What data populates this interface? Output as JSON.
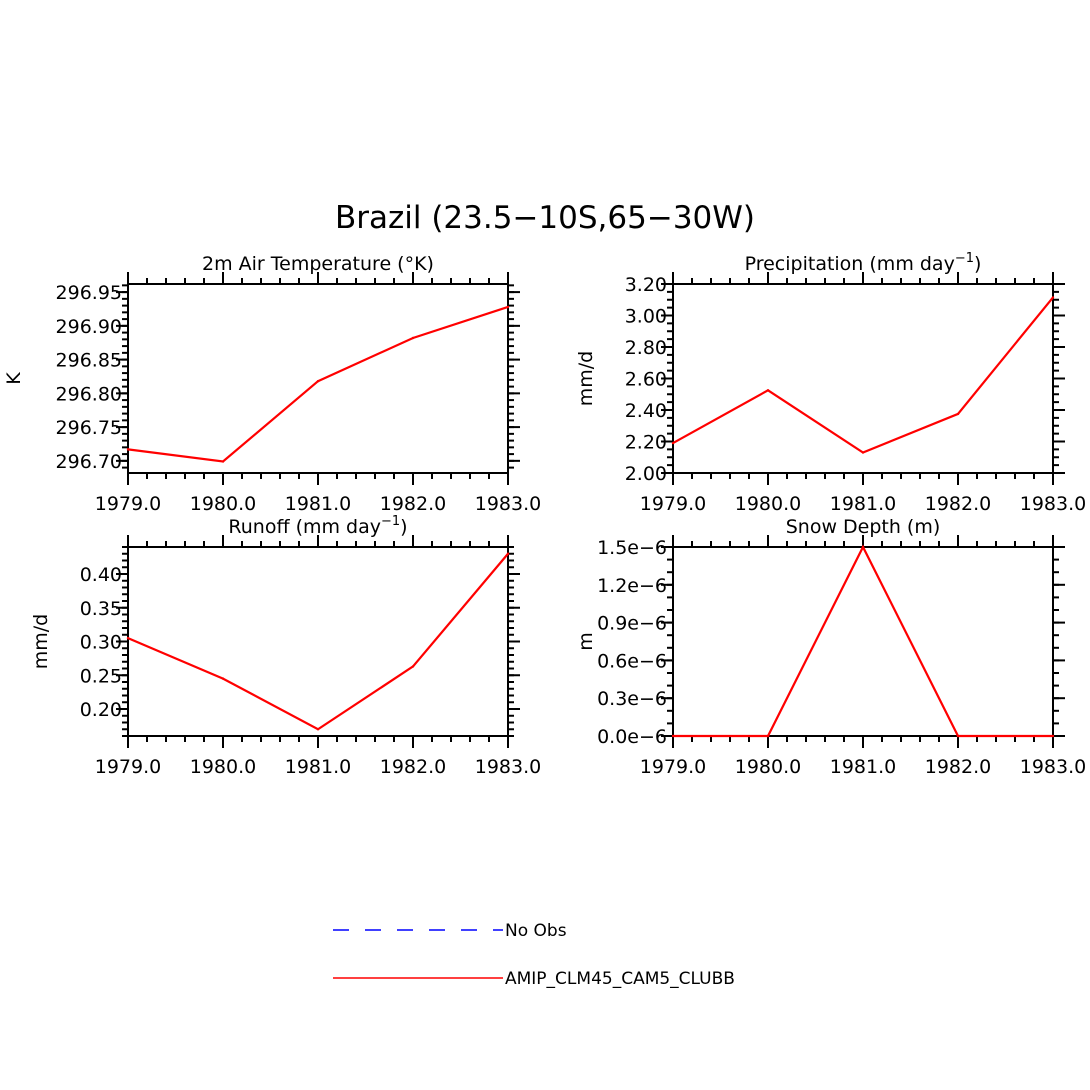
{
  "title": "Brazil (23.5−10S,65−30W)",
  "legend": {
    "items": [
      {
        "label": "No Obs",
        "color": "#0000ff",
        "dash": "dashed"
      },
      {
        "label": "AMIP_CLM45_CAM5_CLUBB",
        "color": "#ff0000",
        "dash": "solid"
      }
    ]
  },
  "chart_data": [
    {
      "type": "line",
      "title": "2m Air Temperature (°K)",
      "ylabel": "K",
      "x": [
        1979.0,
        1980.0,
        1981.0,
        1982.0,
        1983.0
      ],
      "xticks": [
        "1979.0",
        "1980.0",
        "1981.0",
        "1982.0",
        "1983.0"
      ],
      "xlim": [
        1979.0,
        1983.0
      ],
      "yticks": [
        "296.70",
        "296.75",
        "296.80",
        "296.85",
        "296.90",
        "296.95"
      ],
      "ytick_values": [
        296.7,
        296.75,
        296.8,
        296.85,
        296.9,
        296.95
      ],
      "ylim": [
        296.682,
        296.962
      ],
      "yminor_step": 0.01,
      "series": [
        {
          "name": "AMIP_CLM45_CAM5_CLUBB",
          "color": "#ff0000",
          "values": [
            296.717,
            296.699,
            296.818,
            296.882,
            296.928
          ]
        }
      ]
    },
    {
      "type": "line",
      "title_parts": [
        "Precipitation (mm day",
        "−1",
        ")"
      ],
      "ylabel": "mm/d",
      "x": [
        1979.0,
        1980.0,
        1981.0,
        1982.0,
        1983.0
      ],
      "xticks": [
        "1979.0",
        "1980.0",
        "1981.0",
        "1982.0",
        "1983.0"
      ],
      "xlim": [
        1979.0,
        1983.0
      ],
      "yticks": [
        "2.00",
        "2.20",
        "2.40",
        "2.60",
        "2.80",
        "3.00",
        "3.20"
      ],
      "ytick_values": [
        2.0,
        2.2,
        2.4,
        2.6,
        2.8,
        3.0,
        3.2
      ],
      "ylim": [
        2.0,
        3.2
      ],
      "yminor_step": 0.05,
      "series": [
        {
          "name": "AMIP_CLM45_CAM5_CLUBB",
          "color": "#ff0000",
          "values": [
            2.19,
            2.525,
            2.13,
            2.375,
            3.115
          ]
        }
      ]
    },
    {
      "type": "line",
      "title_parts": [
        "Runoff (mm day",
        "−1",
        ")"
      ],
      "ylabel": "mm/d",
      "x": [
        1979.0,
        1980.0,
        1981.0,
        1982.0,
        1983.0
      ],
      "xticks": [
        "1979.0",
        "1980.0",
        "1981.0",
        "1982.0",
        "1983.0"
      ],
      "xlim": [
        1979.0,
        1983.0
      ],
      "yticks": [
        "0.20",
        "0.25",
        "0.30",
        "0.35",
        "0.40"
      ],
      "ytick_values": [
        0.2,
        0.25,
        0.3,
        0.35,
        0.4
      ],
      "ylim": [
        0.16,
        0.44
      ],
      "yminor_step": 0.01,
      "series": [
        {
          "name": "AMIP_CLM45_CAM5_CLUBB",
          "color": "#ff0000",
          "values": [
            0.305,
            0.245,
            0.17,
            0.263,
            0.43
          ]
        }
      ]
    },
    {
      "type": "line",
      "title": "Snow Depth (m)",
      "ylabel": "m",
      "x": [
        1979.0,
        1980.0,
        1981.0,
        1982.0,
        1983.0
      ],
      "xticks": [
        "1979.0",
        "1980.0",
        "1981.0",
        "1982.0",
        "1983.0"
      ],
      "xlim": [
        1979.0,
        1983.0
      ],
      "yticks": [
        "0.0e−6",
        "0.3e−6",
        "0.6e−6",
        "0.9e−6",
        "1.2e−6",
        "1.5e−6"
      ],
      "ytick_values": [
        0.0,
        0.3,
        0.6,
        0.9,
        1.2,
        1.5
      ],
      "ylim": [
        0.0,
        1.5
      ],
      "yminor_step": 0.1,
      "series": [
        {
          "name": "AMIP_CLM45_CAM5_CLUBB",
          "color": "#ff0000",
          "values": [
            0.0,
            0.0,
            1.5,
            0.0,
            0.0
          ]
        }
      ]
    }
  ]
}
